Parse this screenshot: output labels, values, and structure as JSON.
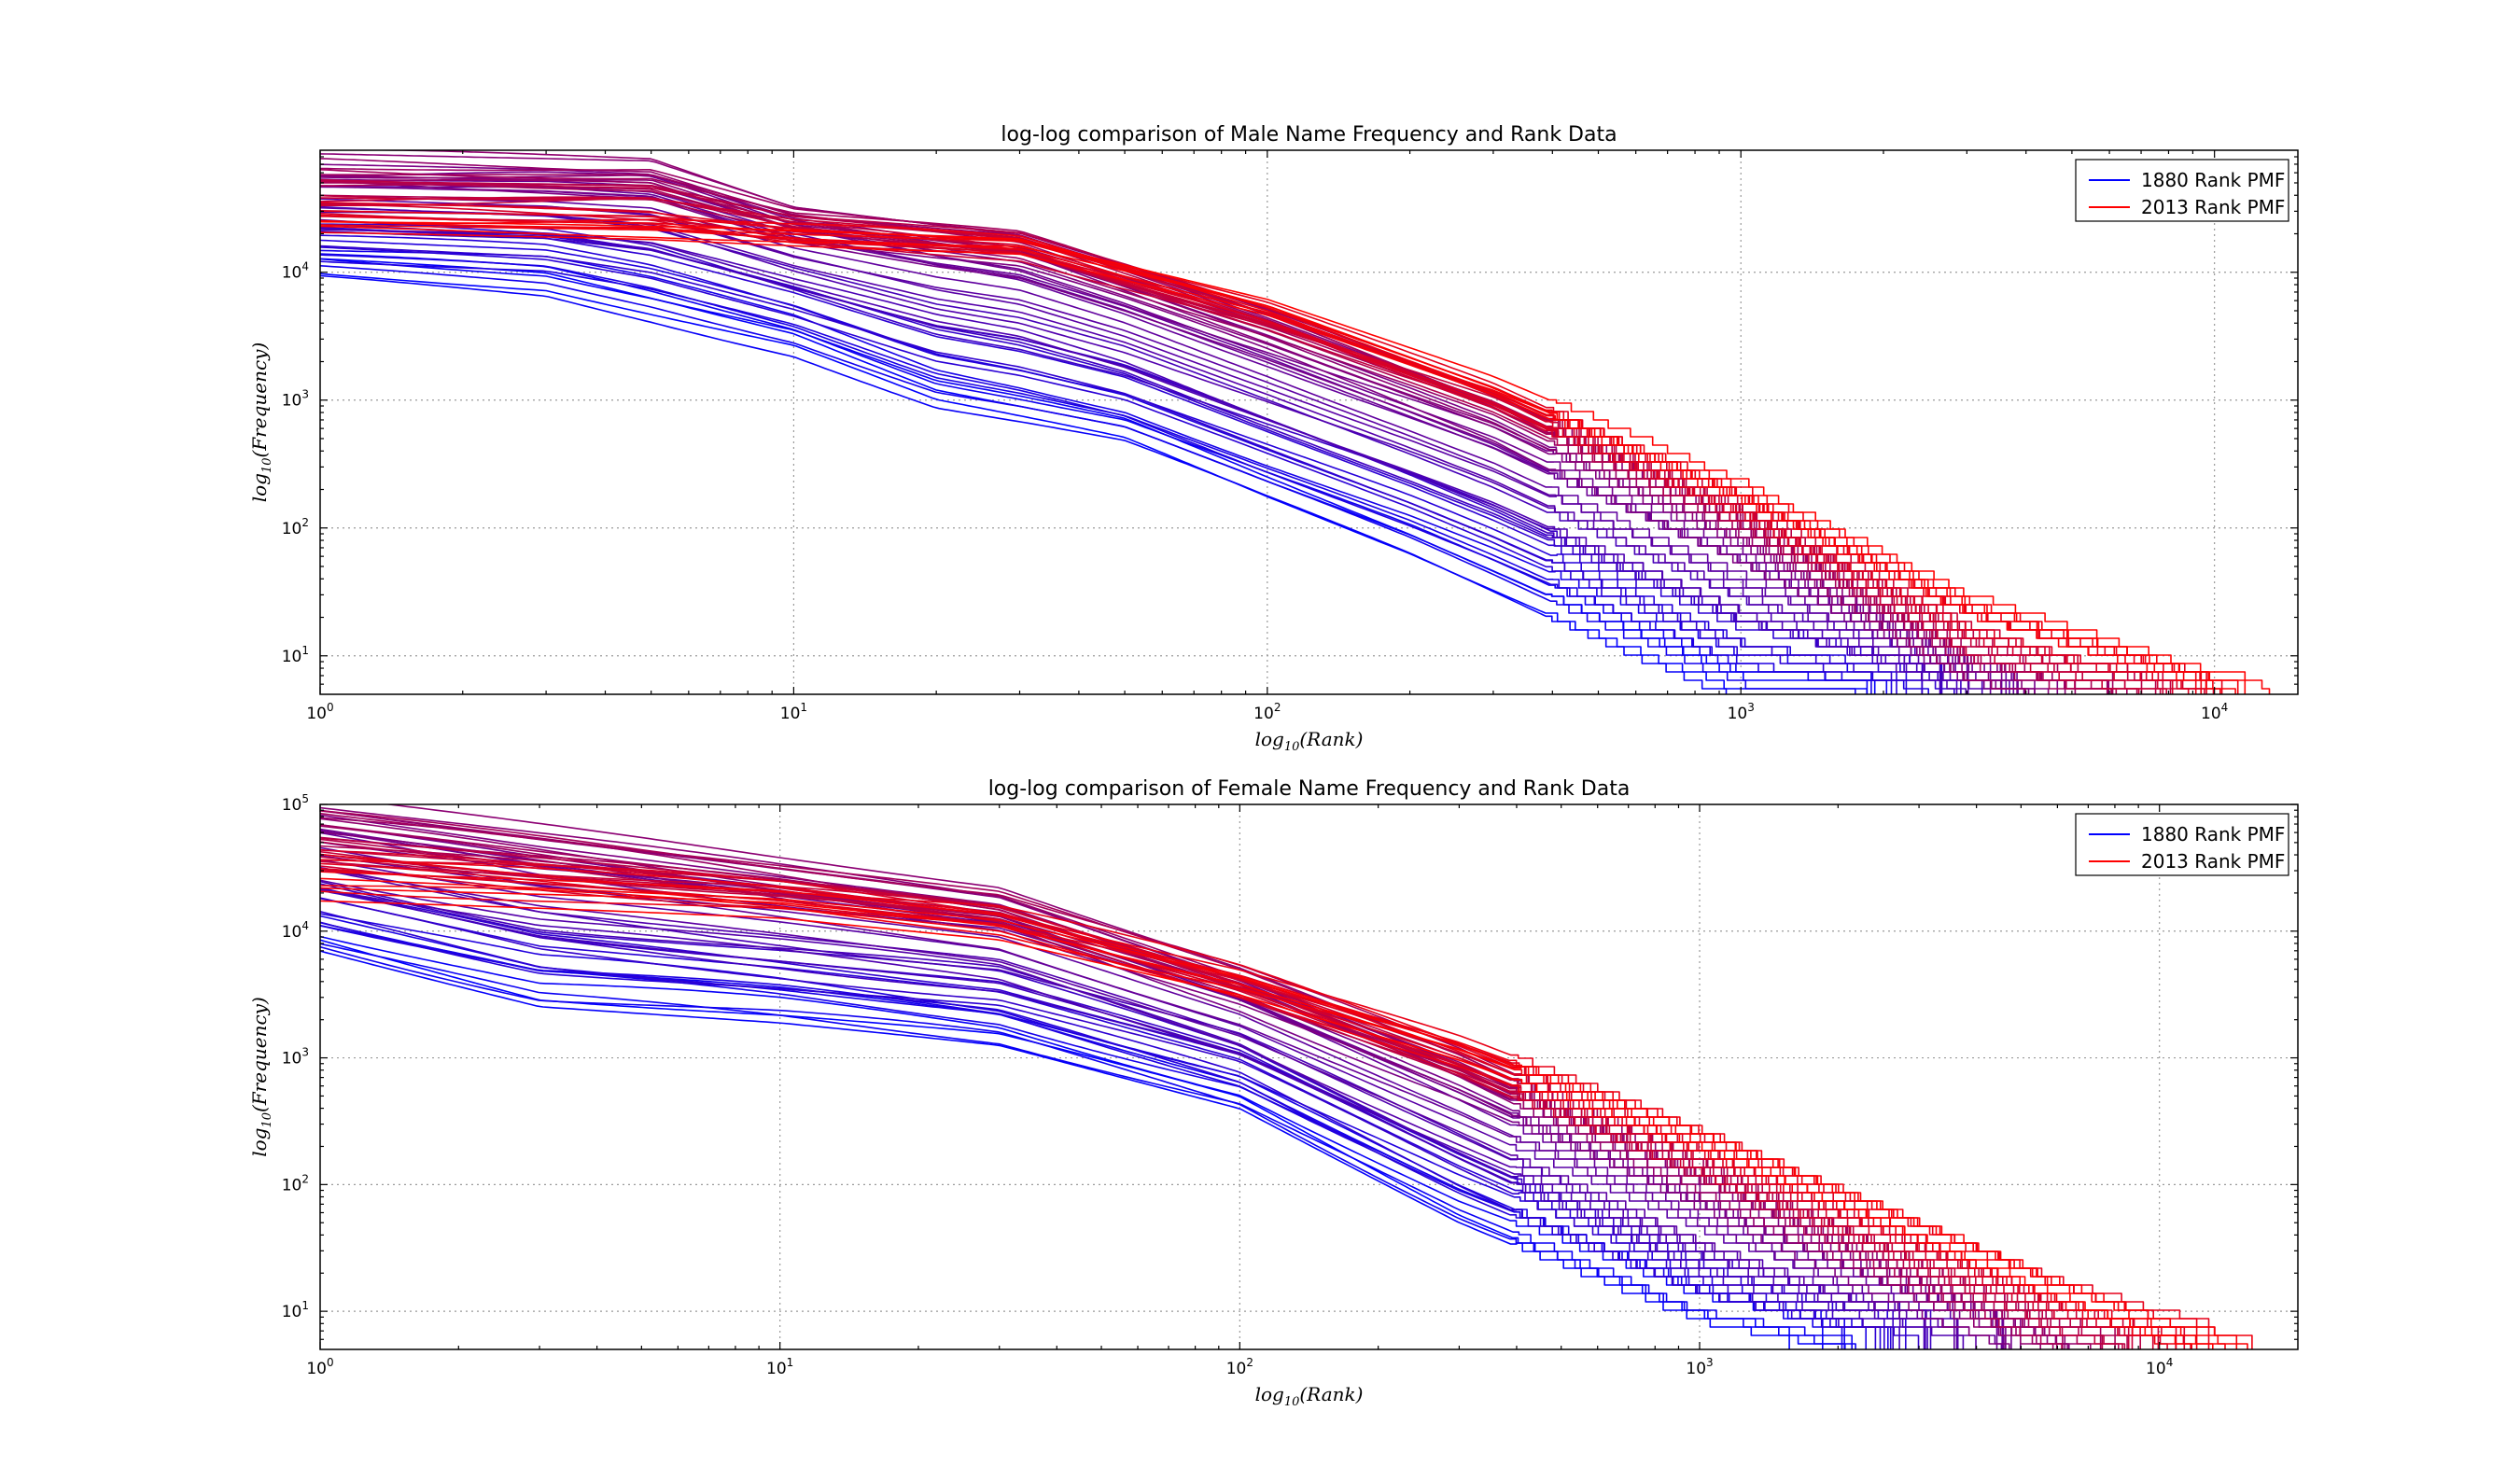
{
  "chart_data": [
    {
      "type": "line",
      "title": "log-log comparison of Male Name Frequency and Rank Data",
      "xlabel_main": "log",
      "xlabel_sub": "10",
      "xlabel_arg": "(Rank)",
      "ylabel_main": "log",
      "ylabel_sub": "10",
      "ylabel_arg": "(Frequency)",
      "xscale": "log",
      "yscale": "log",
      "xlim": [
        1,
        15000
      ],
      "ylim": [
        5,
        90000
      ],
      "xticks": [
        1,
        10,
        100,
        1000,
        10000
      ],
      "yticks": [
        10,
        100,
        1000,
        10000
      ],
      "grid": true,
      "legend_position": "top-right",
      "legend": [
        {
          "label": "1880 Rank PMF",
          "color": "#0000ff"
        },
        {
          "label": "2013 Rank PMF",
          "color": "#ff0000"
        }
      ],
      "series_count": 134,
      "year_range": [
        1880,
        2013
      ],
      "anchors": {
        "early": {
          "rank": [
            1,
            3,
            10,
            20,
            50,
            100,
            200,
            500,
            1000,
            2000
          ],
          "frequency": [
            9000,
            7000,
            2500,
            900,
            450,
            160,
            60,
            14,
            5,
            5
          ]
        },
        "peak": {
          "rank": [
            1,
            5,
            10,
            30,
            100,
            300,
            1000,
            3000,
            5000
          ],
          "frequency": [
            75000,
            70000,
            30000,
            18000,
            4000,
            900,
            100,
            8,
            5
          ]
        },
        "late": {
          "rank": [
            1,
            10,
            30,
            100,
            300,
            1000,
            3000,
            10000,
            15000
          ],
          "frequency": [
            20000,
            17000,
            15000,
            5000,
            1200,
            180,
            25,
            6,
            5
          ]
        }
      }
    },
    {
      "type": "line",
      "title": "log-log comparison of Female Name Frequency and Rank Data",
      "xlabel_main": "log",
      "xlabel_sub": "10",
      "xlabel_arg": "(Rank)",
      "ylabel_main": "log",
      "ylabel_sub": "10",
      "ylabel_arg": "(Frequency)",
      "xscale": "log",
      "yscale": "log",
      "xlim": [
        1,
        20000
      ],
      "ylim": [
        5,
        100000
      ],
      "xticks": [
        1,
        10,
        100,
        1000,
        10000
      ],
      "yticks": [
        10,
        100,
        1000,
        10000,
        100000
      ],
      "grid": true,
      "legend_position": "top-right",
      "legend": [
        {
          "label": "1880 Rank PMF",
          "color": "#0000ff"
        },
        {
          "label": "2013 Rank PMF",
          "color": "#ff0000"
        }
      ],
      "series_count": 134,
      "year_range": [
        1880,
        2013
      ],
      "anchors": {
        "early": {
          "rank": [
            1,
            3,
            10,
            30,
            100,
            300,
            1000,
            2000
          ],
          "frequency": [
            7000,
            2500,
            1800,
            1200,
            400,
            50,
            8,
            5
          ]
        },
        "peak": {
          "rank": [
            1,
            10,
            30,
            100,
            300,
            1000,
            3000,
            6000
          ],
          "frequency": [
            90000,
            30000,
            18000,
            4000,
            800,
            100,
            15,
            5
          ]
        },
        "late": {
          "rank": [
            1,
            10,
            30,
            100,
            300,
            1000,
            3000,
            10000,
            18000
          ],
          "frequency": [
            22000,
            16000,
            11000,
            4000,
            1200,
            250,
            50,
            8,
            5
          ]
        }
      }
    }
  ]
}
